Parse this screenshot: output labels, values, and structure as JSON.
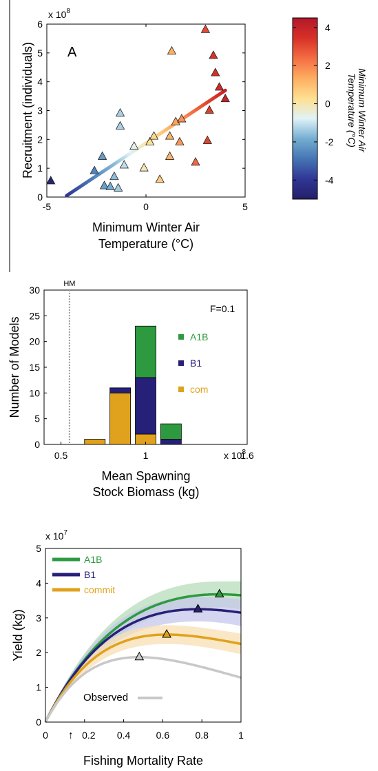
{
  "chart_data": [
    {
      "id": "A",
      "type": "scatter",
      "panel_label": "A",
      "xlabel": "Minimum Winter Air",
      "xlabel_line2": "Temperature (°C)",
      "ylabel": "Recruitment (individuals)",
      "exponent_label": "x 10",
      "exponent_power": "8",
      "xlim": [
        -5,
        5
      ],
      "ylim": [
        0,
        6
      ],
      "xticks": [
        -5,
        0,
        5
      ],
      "yticks": [
        0,
        1,
        2,
        3,
        4,
        5,
        6
      ],
      "points": [
        {
          "x": -4.8,
          "y": 0.55
        },
        {
          "x": -2.6,
          "y": 0.9
        },
        {
          "x": -2.2,
          "y": 1.4
        },
        {
          "x": -2.1,
          "y": 0.38
        },
        {
          "x": -1.8,
          "y": 0.35
        },
        {
          "x": -1.6,
          "y": 0.7
        },
        {
          "x": -1.4,
          "y": 0.3
        },
        {
          "x": -1.3,
          "y": 2.9
        },
        {
          "x": -1.3,
          "y": 2.45
        },
        {
          "x": -1.1,
          "y": 1.1
        },
        {
          "x": -0.6,
          "y": 1.75
        },
        {
          "x": -0.1,
          "y": 1.0
        },
        {
          "x": 0.2,
          "y": 1.9
        },
        {
          "x": 0.4,
          "y": 2.1
        },
        {
          "x": 0.7,
          "y": 0.6
        },
        {
          "x": 1.2,
          "y": 1.4
        },
        {
          "x": 1.2,
          "y": 2.1
        },
        {
          "x": 1.3,
          "y": 5.05
        },
        {
          "x": 1.5,
          "y": 2.6
        },
        {
          "x": 1.7,
          "y": 1.9
        },
        {
          "x": 1.8,
          "y": 2.7
        },
        {
          "x": 2.5,
          "y": 1.2
        },
        {
          "x": 3.0,
          "y": 5.8
        },
        {
          "x": 3.1,
          "y": 1.95
        },
        {
          "x": 3.2,
          "y": 3.0
        },
        {
          "x": 3.4,
          "y": 4.9
        },
        {
          "x": 3.5,
          "y": 4.3
        },
        {
          "x": 3.7,
          "y": 3.8
        },
        {
          "x": 4.0,
          "y": 3.4
        }
      ],
      "fit_line": {
        "x": [
          -4,
          4
        ],
        "y": [
          0.05,
          3.7
        ]
      },
      "colorbar": {
        "label_line1": "Minimum Winter Air",
        "label_line2": "Temperature (°C)",
        "range": [
          -5,
          4.5
        ],
        "ticks": [
          4,
          2,
          0,
          -2,
          -4
        ],
        "colors": [
          "#b2182b",
          "#d73027",
          "#f46d43",
          "#fdae61",
          "#fee090",
          "#e0f3f8",
          "#74add1",
          "#4575b4",
          "#313695",
          "#232069"
        ]
      }
    },
    {
      "id": "B",
      "type": "bar",
      "stacked": true,
      "annotation": "F=0.1",
      "reference_label": "HM",
      "reference_x": 0.55,
      "xlabel": "Mean Spawning",
      "xlabel_line2": "Stock Biomass (kg)",
      "ylabel": "Number of Models",
      "exponent_label": "x 10",
      "exponent_power": "8",
      "xlim": [
        0.4,
        1.6
      ],
      "ylim": [
        0,
        30
      ],
      "xticks": [
        "0.5",
        "1",
        "1.6"
      ],
      "yticks": [
        0,
        5,
        10,
        15,
        20,
        25,
        30
      ],
      "bin_width": 0.1,
      "x": [
        0.7,
        0.85,
        1.0,
        1.15
      ],
      "series": [
        {
          "name": "com",
          "color": "#e0a21d",
          "values": [
            1,
            10,
            2,
            0
          ]
        },
        {
          "name": "B1",
          "color": "#272078",
          "values": [
            0,
            1,
            11,
            1
          ]
        },
        {
          "name": "A1B",
          "color": "#2e9a40",
          "values": [
            0,
            0,
            10,
            3
          ]
        }
      ],
      "legend": [
        {
          "name": "A1B",
          "color": "#2e9a40"
        },
        {
          "name": "B1",
          "color": "#272078"
        },
        {
          "name": "com",
          "color": "#e0a21d"
        }
      ]
    },
    {
      "id": "C",
      "type": "line",
      "xlabel": "Fishing Mortality Rate",
      "ylabel": "Yield (kg)",
      "exponent_label": "x 10",
      "exponent_power": "7",
      "xlim": [
        0,
        1
      ],
      "ylim": [
        0,
        5
      ],
      "xticks": [
        "0",
        "0.2",
        "0.4",
        "0.6",
        "0.8",
        "1"
      ],
      "yticks": [
        0,
        1,
        2,
        3,
        4,
        5
      ],
      "arrow_marker": "↑",
      "arrow_x": 0.13,
      "series": [
        {
          "name": "A1B",
          "color": "#2e9a40",
          "band": "#b7dcb9",
          "peak_x": 0.89,
          "peak_y": 3.68,
          "end_y": 3.65,
          "band_width": 0.37
        },
        {
          "name": "B1",
          "color": "#272078",
          "band": "#c6c7eb",
          "peak_x": 0.78,
          "peak_y": 3.25,
          "end_y": 3.15,
          "band_width": 0.35
        },
        {
          "name": "commit",
          "color": "#e0a21d",
          "band": "#f7dfb3",
          "peak_x": 0.62,
          "peak_y": 2.52,
          "end_y": 2.25,
          "band_width": 0.27
        },
        {
          "name": "Observed",
          "color": "#c8c8c8",
          "band": null,
          "peak_x": 0.48,
          "peak_y": 1.87,
          "end_y": 1.28,
          "band_width": 0
        }
      ]
    }
  ]
}
